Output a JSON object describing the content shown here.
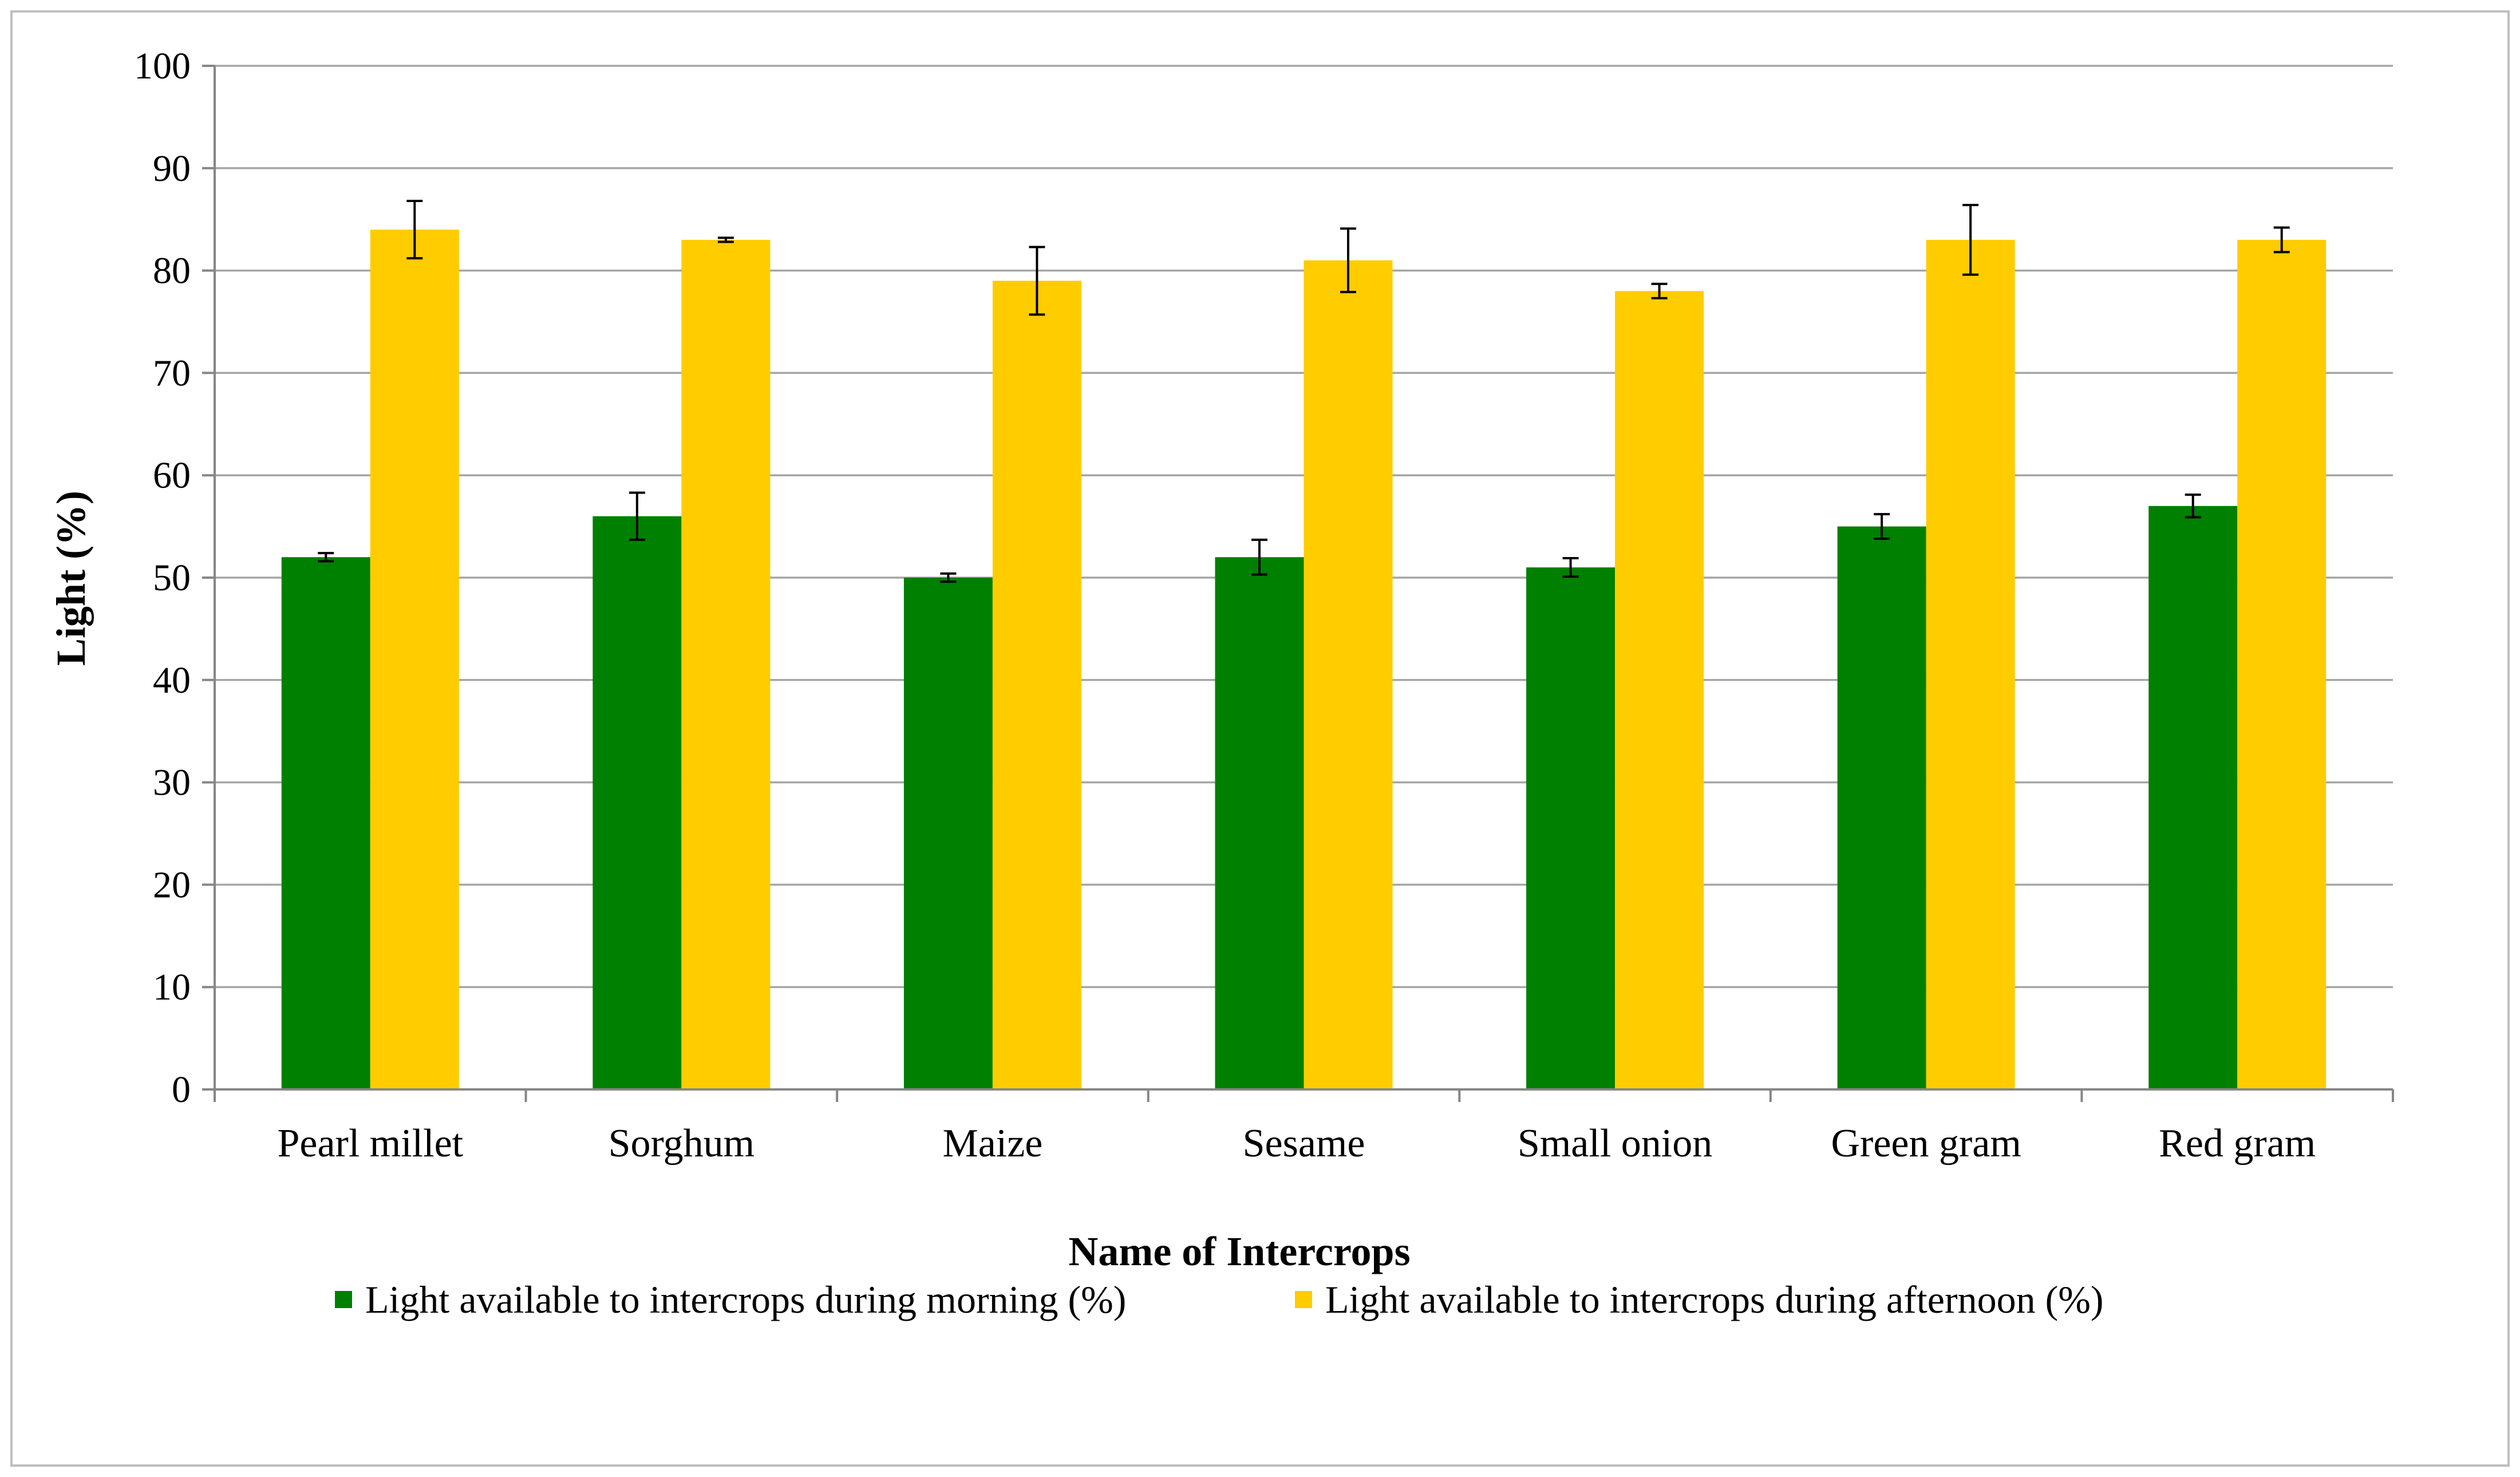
{
  "chart_data": {
    "type": "bar",
    "title": "",
    "xlabel": "Name of  Intercrops",
    "ylabel": "Light  (%)",
    "ylim": [
      0,
      100
    ],
    "yticks": [
      0,
      10,
      20,
      30,
      40,
      50,
      60,
      70,
      80,
      90,
      100
    ],
    "grid": true,
    "legend_position": "bottom",
    "categories": [
      "Pearl millet",
      "Sorghum",
      "Maize",
      "Sesame",
      "Small onion",
      "Green gram",
      "Red gram"
    ],
    "series": [
      {
        "name": "Light available to intercrops during morning (%)",
        "color": "#008000",
        "values": [
          52,
          56,
          50,
          52,
          51,
          55,
          57
        ],
        "errors": [
          0.4,
          2.3,
          0.4,
          1.7,
          0.9,
          1.2,
          1.1
        ]
      },
      {
        "name": "Light available to intercrops during afternoon (%)",
        "color": "#ffcc00",
        "values": [
          84,
          83,
          79,
          81,
          78,
          83,
          83
        ],
        "errors": [
          2.8,
          0.2,
          3.3,
          3.1,
          0.7,
          3.4,
          1.2
        ]
      }
    ]
  }
}
